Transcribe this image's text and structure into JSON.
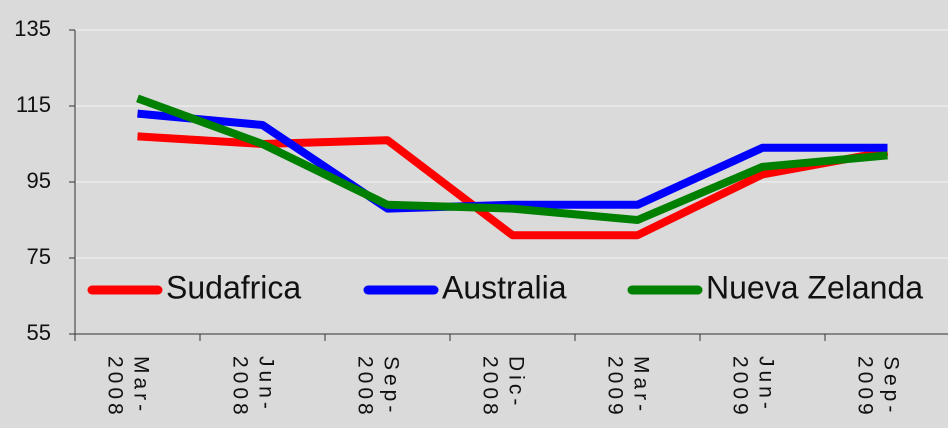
{
  "chart_data": {
    "type": "line",
    "categories": [
      "Mar-2008",
      "Jun-2008",
      "Sep-2008",
      "Dic-2008",
      "Mar-2009",
      "Jun-2009",
      "Sep-2009"
    ],
    "series": [
      {
        "name": "Sudafrica",
        "color": "#ff0000",
        "values": [
          107,
          105,
          106,
          81,
          81,
          97,
          103
        ]
      },
      {
        "name": "Australia",
        "color": "#0000ff",
        "values": [
          113,
          110,
          88,
          89,
          89,
          104,
          104
        ]
      },
      {
        "name": "Nueva Zelanda",
        "color": "#008000",
        "values": [
          117,
          105,
          89,
          88,
          85,
          99,
          102
        ]
      }
    ],
    "ylim": [
      55,
      135
    ],
    "yticks": [
      55,
      75,
      95,
      115,
      135
    ],
    "grid": true,
    "legend": "bottom"
  }
}
